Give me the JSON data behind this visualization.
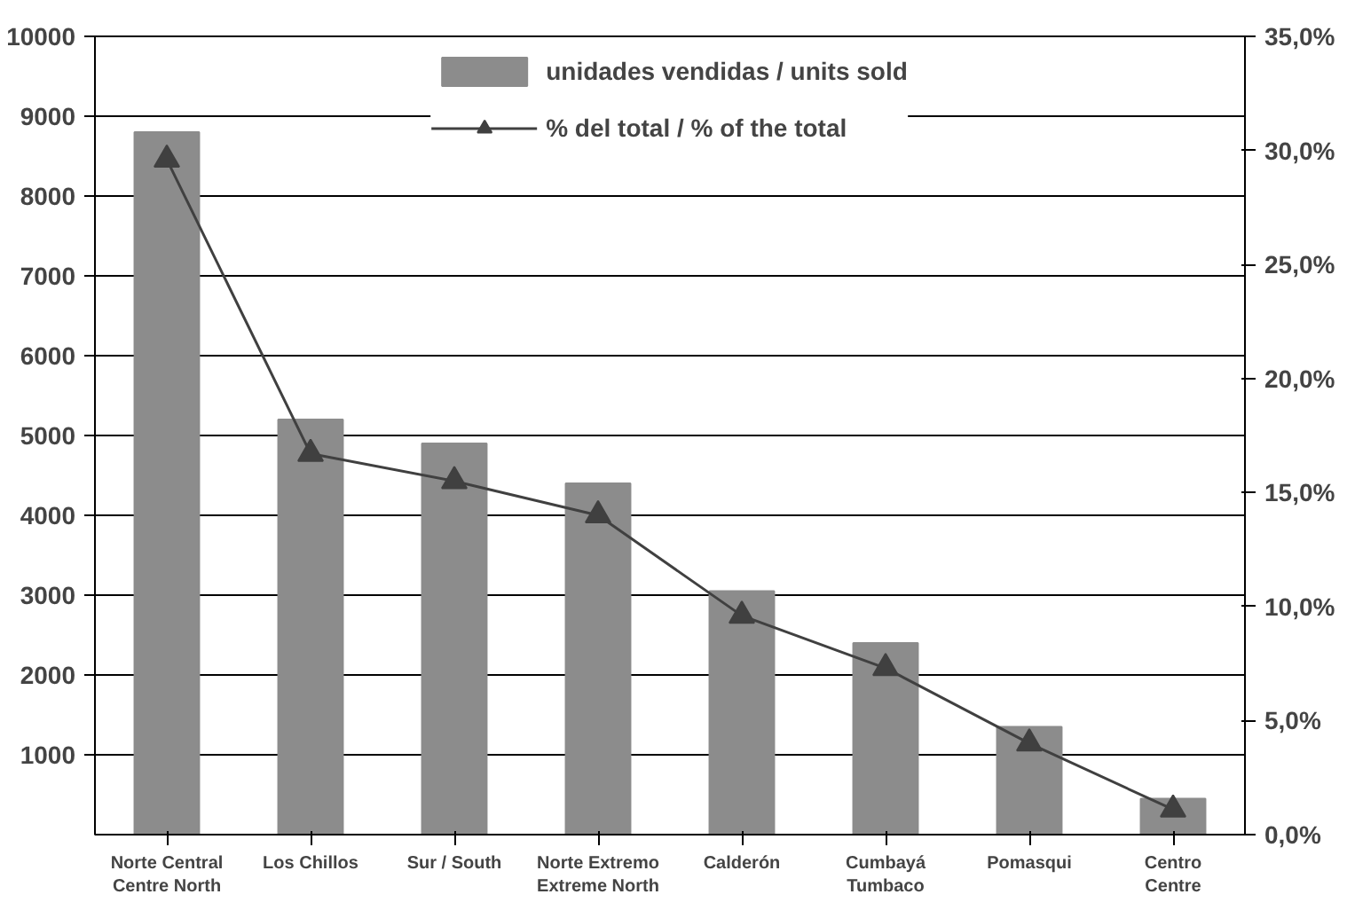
{
  "chart_data": {
    "type": "bar",
    "categories": [
      "Norte Central\nCentre North",
      "Los Chillos",
      "Sur / South",
      "Norte Extremo\nExtreme North",
      "Calderón",
      "Cumbayá\nTumbaco",
      "Pomasqui",
      "Centro\nCentre"
    ],
    "series": [
      {
        "name": "unidades vendidas / units sold",
        "color": "#8c8c8c",
        "values": [
          8800,
          5200,
          4900,
          4400,
          3050,
          2400,
          1350,
          450
        ]
      },
      {
        "name": "% del total / % of the total",
        "type": "line",
        "axis": "y2",
        "color": "#404040",
        "marker": "triangle",
        "values": [
          29.6,
          16.7,
          15.5,
          14.0,
          9.6,
          7.3,
          4.0,
          1.1
        ]
      }
    ],
    "ylim": [
      0,
      10000
    ],
    "yticks": [
      1000,
      2000,
      3000,
      4000,
      5000,
      6000,
      7000,
      8000,
      9000,
      10000
    ],
    "y2lim": [
      0,
      35
    ],
    "y2ticks": [
      {
        "value": 0,
        "label": "0,0%"
      },
      {
        "value": 5,
        "label": "5,0%"
      },
      {
        "value": 10,
        "label": "10,0%"
      },
      {
        "value": 15,
        "label": "15,0%"
      },
      {
        "value": 20,
        "label": "20,0%"
      },
      {
        "value": 25,
        "label": "25,0%"
      },
      {
        "value": 30,
        "label": "30,0%"
      },
      {
        "value": 35,
        "label": "35,0%"
      }
    ],
    "grid": "y",
    "legend": "top"
  }
}
